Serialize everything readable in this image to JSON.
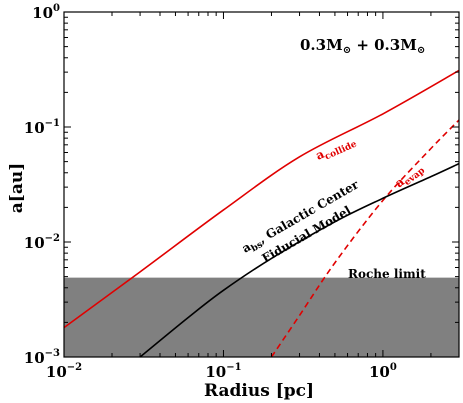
{
  "chart_data": {
    "type": "line",
    "xlabel": "Radius [pc]",
    "ylabel": "a[au]",
    "xscale": "log",
    "yscale": "log",
    "xlim": [
      0.01,
      3.0
    ],
    "ylim": [
      0.001,
      1.0
    ],
    "xticks": [
      {
        "value": 0.01,
        "base": "10",
        "exp": "−2"
      },
      {
        "value": 0.1,
        "base": "10",
        "exp": "−1"
      },
      {
        "value": 1,
        "base": "10",
        "exp": "0"
      }
    ],
    "yticks": [
      {
        "value": 0.001,
        "base": "10",
        "exp": "−3"
      },
      {
        "value": 0.01,
        "base": "10",
        "exp": "−2"
      },
      {
        "value": 0.1,
        "base": "10",
        "exp": "−1"
      },
      {
        "value": 1,
        "base": "10",
        "exp": "0"
      }
    ],
    "mass_label": {
      "m1": "0.3M",
      "plus": " + ",
      "m2": "0.3M",
      "symbol": "⊙"
    },
    "shaded_region": {
      "ymin": 0.001,
      "ymax": 0.0049,
      "color": "#808080",
      "label": "Roche limit"
    },
    "series": [
      {
        "key": "acollide",
        "label_main": "a",
        "label_sub": "collide",
        "color": "#e00000",
        "dash": "solid",
        "x": [
          0.01,
          0.03,
          0.1,
          0.3,
          1.0,
          3.0
        ],
        "y": [
          0.0018,
          0.0055,
          0.019,
          0.055,
          0.13,
          0.31
        ]
      },
      {
        "key": "aevap",
        "label_main": "a",
        "label_sub": "evap",
        "color": "#e00000",
        "dash": "dashed",
        "x": [
          0.2,
          0.3,
          0.5,
          1.0,
          2.0,
          3.0
        ],
        "y": [
          0.001,
          0.0023,
          0.0066,
          0.023,
          0.065,
          0.115
        ]
      },
      {
        "key": "abs",
        "label_main": "a",
        "label_sub": "bs",
        "label_rest": ", Galactic Center",
        "label_line2": "Fiducial Model",
        "color": "#000000",
        "dash": "solid",
        "x": [
          0.03,
          0.06,
          0.1,
          0.2,
          0.5,
          1.0,
          2.0,
          3.0
        ],
        "y": [
          0.001,
          0.0022,
          0.0038,
          0.0072,
          0.015,
          0.024,
          0.037,
          0.048
        ]
      }
    ]
  }
}
